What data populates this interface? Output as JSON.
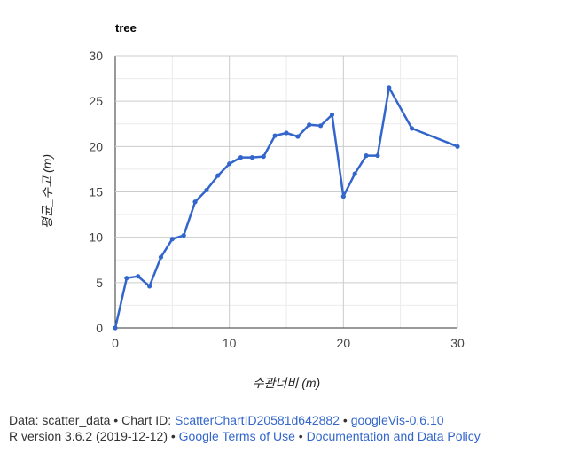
{
  "chart_data": {
    "type": "line",
    "title": "tree",
    "xlabel": "수관너비 (m)",
    "ylabel": "평균_수고 (m)",
    "xlim": [
      0,
      30
    ],
    "ylim": [
      0,
      30
    ],
    "x_ticks": [
      "0",
      "10",
      "20",
      "30"
    ],
    "y_ticks": [
      "0",
      "5",
      "10",
      "15",
      "20",
      "25",
      "30"
    ],
    "grid": true,
    "series": [
      {
        "color": "#3366cc",
        "points": [
          [
            0,
            0
          ],
          [
            1,
            5.5
          ],
          [
            2,
            5.7
          ],
          [
            3,
            4.6
          ],
          [
            4,
            7.8
          ],
          [
            5,
            9.8
          ],
          [
            6,
            10.2
          ],
          [
            7,
            13.9
          ],
          [
            8,
            15.2
          ],
          [
            9,
            16.8
          ],
          [
            10,
            18.1
          ],
          [
            11,
            18.8
          ],
          [
            12,
            18.8
          ],
          [
            13,
            18.9
          ],
          [
            14,
            21.2
          ],
          [
            15,
            21.5
          ],
          [
            16,
            21.1
          ],
          [
            17,
            22.4
          ],
          [
            18,
            22.3
          ],
          [
            19,
            23.5
          ],
          [
            20,
            14.5
          ],
          [
            21,
            17.0
          ],
          [
            22,
            19.0
          ],
          [
            23,
            19.0
          ],
          [
            24,
            26.5
          ],
          [
            26,
            22.0
          ],
          [
            30,
            20.0
          ]
        ]
      }
    ]
  },
  "footer": {
    "line1_prefix": "Data: scatter_data • Chart ID: ",
    "chart_id_link": "ScatterChartID20581d642882",
    "sep1": " • ",
    "googlevis_link": "googleVis-0.6.10",
    "line2_prefix": "R version 3.6.2 (2019-12-12) • ",
    "terms_link": "Google Terms of Use",
    "sep2": " • ",
    "policy_link": "Documentation and Data Policy"
  }
}
